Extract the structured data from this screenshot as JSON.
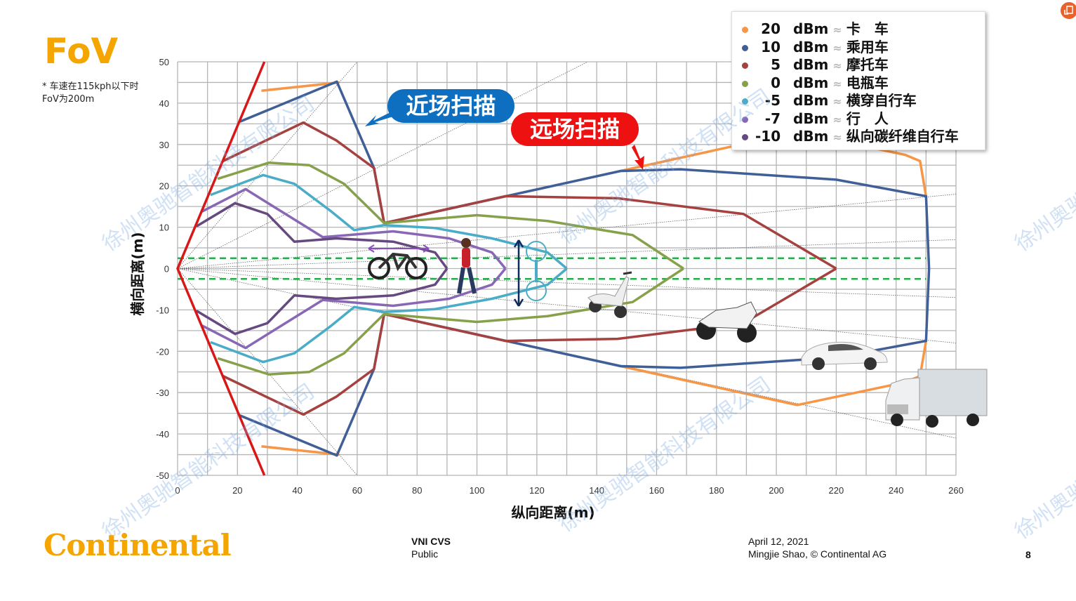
{
  "slide": {
    "title": "FoV",
    "note_line1": "* 车速在115kph以下时",
    "note_line2": "FoV为200m",
    "near_callout": "近场扫描",
    "far_callout": "远场扫描",
    "watermark": "徐州奥驰智能科技有限公司",
    "footer": {
      "logo": "Continental",
      "project": "VNI CVS",
      "classification": "Public",
      "date": "April 12, 2021",
      "author": "Mingjie Shao, © Continental AG",
      "page": "8"
    },
    "corner_icon": "export-icon",
    "corner_color": "#e8622a"
  },
  "legend": [
    {
      "value": "20",
      "unit": "dBm",
      "approx": "≈",
      "label": "卡　车",
      "color": "#f79646"
    },
    {
      "value": "10",
      "unit": "dBm",
      "approx": "≈",
      "label": "乘用车",
      "color": "#3f5f96"
    },
    {
      "value": "5",
      "unit": "dBm",
      "approx": "≈",
      "label": "摩托车",
      "color": "#a5413f"
    },
    {
      "value": "0",
      "unit": "dBm",
      "approx": "≈",
      "label": "电瓶车",
      "color": "#86a14a"
    },
    {
      "value": "-5",
      "unit": "dBm",
      "approx": "≈",
      "label": "横穿自行车",
      "color": "#4aacc6"
    },
    {
      "value": "-7",
      "unit": "dBm",
      "approx": "≈",
      "label": "行　人",
      "color": "#8867b5"
    },
    {
      "value": "-10",
      "unit": "dBm",
      "approx": "≈",
      "label": "纵向碳纤维自行车",
      "color": "#65497f"
    }
  ],
  "chart_data": {
    "type": "line",
    "xlabel": "纵向距离(m)",
    "ylabel": "横向距离(m)",
    "xlim": [
      0,
      260
    ],
    "ylim": [
      -50,
      50
    ],
    "xticks": [
      0,
      20,
      40,
      60,
      80,
      100,
      120,
      140,
      160,
      180,
      200,
      220,
      240,
      260
    ],
    "yticks": [
      50,
      40,
      30,
      20,
      10,
      0,
      -10,
      -20,
      -30,
      -40,
      -50
    ],
    "grid": true,
    "legend_position": "top-right",
    "symmetric_about_x_axis": true,
    "series": [
      {
        "name": "20 dBm ≈ 卡车",
        "color": "#f79646",
        "segments": [
          [
            [
              28,
              43
            ],
            [
              54,
              45
            ]
          ],
          [
            [
              148,
              23.6
            ],
            [
              207,
              33
            ],
            [
              243,
              27.5
            ],
            [
              248,
              26
            ],
            [
              250,
              17.5
            ]
          ]
        ]
      },
      {
        "name": "10 dBm ≈ 乘用车",
        "color": "#3f5f96",
        "segments": [
          [
            [
              20.4,
              35.4
            ],
            [
              53.2,
              45.2
            ],
            [
              65.6,
              24.3
            ],
            [
              69,
              11
            ],
            [
              148,
              23.6
            ],
            [
              168,
              24
            ],
            [
              220,
              21.5
            ],
            [
              250,
              17.5
            ],
            [
              251,
              0
            ]
          ]
        ]
      },
      {
        "name": "5 dBm ≈ 摩托车",
        "color": "#a5413f",
        "segments": [
          [
            [
              15.2,
              26
            ],
            [
              42,
              35.3
            ],
            [
              53,
              31
            ],
            [
              65.6,
              24.3
            ],
            [
              69,
              11
            ],
            [
              109.5,
              17.5
            ],
            [
              147,
              17
            ],
            [
              189,
              13.2
            ],
            [
              220,
              0
            ]
          ]
        ]
      },
      {
        "name": "0 dBm ≈ 电瓶车",
        "color": "#86a14a",
        "segments": [
          [
            [
              13.4,
              21.7
            ],
            [
              30.5,
              25.6
            ],
            [
              44,
              25
            ],
            [
              55.6,
              20.5
            ],
            [
              69,
              11
            ],
            [
              100,
              12.9
            ],
            [
              123.6,
              11.5
            ],
            [
              152,
              8.1
            ],
            [
              169,
              0
            ]
          ]
        ]
      },
      {
        "name": "-5 dBm ≈ 横穿自行车",
        "color": "#4aacc6",
        "segments": [
          [
            [
              11,
              17.8
            ],
            [
              28.6,
              22.6
            ],
            [
              39,
              20.5
            ],
            [
              51,
              14
            ],
            [
              59,
              9.3
            ],
            [
              69,
              10.5
            ],
            [
              86,
              9.8
            ],
            [
              105,
              7.3
            ],
            [
              123.6,
              3.9
            ],
            [
              130,
              0
            ]
          ]
        ]
      },
      {
        "name": "-7 dBm ≈ 行人",
        "color": "#8867b5",
        "segments": [
          [
            [
              8.2,
              13.8
            ],
            [
              22.7,
              19.2
            ],
            [
              48.5,
              7.6
            ],
            [
              72,
              9
            ],
            [
              90.7,
              7.3
            ],
            [
              105,
              3.9
            ],
            [
              109.5,
              0
            ]
          ]
        ]
      },
      {
        "name": "-10 dBm ≈ 纵向碳纤维自行车",
        "color": "#65497f",
        "segments": [
          [
            [
              6.3,
              10.2
            ],
            [
              19.2,
              15.8
            ],
            [
              30,
              13.2
            ],
            [
              39,
              6.5
            ],
            [
              53,
              7.3
            ],
            [
              72,
              6.5
            ],
            [
              86,
              3.9
            ],
            [
              90,
              0
            ]
          ]
        ]
      }
    ],
    "fov_boundary": {
      "color": "#d81818",
      "points": [
        [
          29,
          50
        ],
        [
          0,
          0
        ],
        [
          29,
          -50
        ]
      ]
    },
    "lane_lines": {
      "color": "#22b04a",
      "y": [
        2.5,
        -2.5
      ]
    },
    "reference_rays": [
      [
        60,
        50
      ],
      [
        137,
        50
      ],
      [
        260,
        18
      ],
      [
        260,
        7
      ],
      [
        260,
        -7
      ],
      [
        260,
        -18
      ],
      [
        260,
        -41
      ],
      [
        60,
        -50
      ]
    ]
  }
}
